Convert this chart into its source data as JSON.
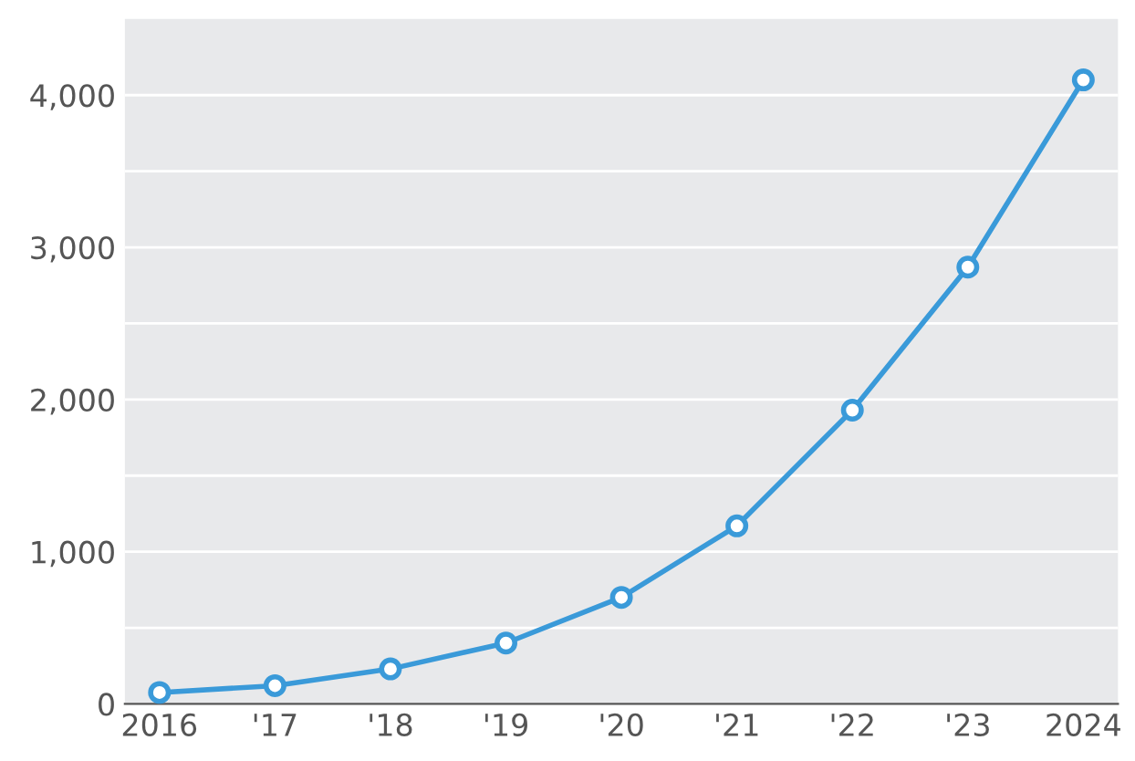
{
  "chart_data": {
    "type": "line",
    "categories": [
      "2016",
      "'17",
      "'18",
      "'19",
      "'20",
      "'21",
      "'22",
      "'23",
      "2024"
    ],
    "series": [
      {
        "color": "#3a9ad9",
        "values": [
          75,
          120,
          230,
          400,
          700,
          1170,
          1930,
          2870,
          4100
        ]
      }
    ],
    "ylim": [
      0,
      4500
    ],
    "yticks": [
      0,
      {
        "value": 500,
        "label": null
      },
      {
        "value": 1000,
        "label": "1,000"
      },
      {
        "value": 1500,
        "label": null
      },
      {
        "value": 2000,
        "label": "2,000"
      },
      {
        "value": 2500,
        "label": null
      },
      {
        "value": 3000,
        "label": "3,000"
      },
      {
        "value": 3500,
        "label": null
      },
      {
        "value": 4000,
        "label": "4,000"
      }
    ],
    "grid": "y",
    "marker": "circle",
    "line_style": "solid",
    "legend": false
  }
}
